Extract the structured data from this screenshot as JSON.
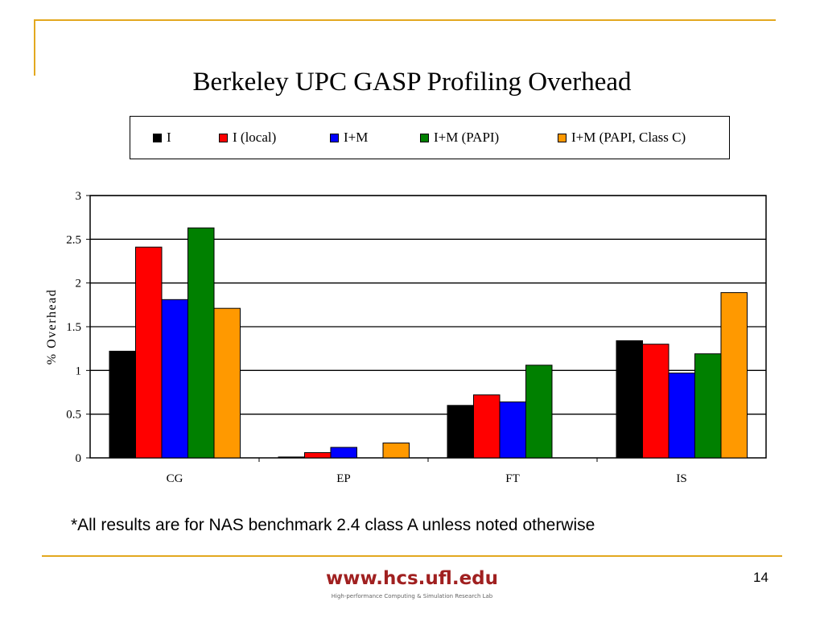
{
  "slide": {
    "note": "*All results are for NAS benchmark 2.4 class A unless noted otherwise",
    "footer_url": "www.hcs.ufl.edu",
    "footer_lab": "High-performance Computing & Simulation Research Lab",
    "page_number": "14",
    "accent_color": "#e3a81f"
  },
  "chart_data": {
    "type": "bar",
    "title": "Berkeley UPC GASP Profiling Overhead",
    "xlabel": "",
    "ylabel": "% Overhead",
    "ylim": [
      0,
      3
    ],
    "yticks": [
      "0",
      "0.5",
      "1",
      "1.5",
      "2",
      "2.5",
      "3"
    ],
    "categories": [
      "CG",
      "EP",
      "FT",
      "IS"
    ],
    "grid": true,
    "legend_position": "top",
    "series": [
      {
        "name": "I",
        "color": "#000000",
        "values": [
          1.22,
          0.01,
          0.6,
          1.34
        ]
      },
      {
        "name": "I (local)",
        "color": "#ff0000",
        "values": [
          2.41,
          0.06,
          0.72,
          1.3
        ]
      },
      {
        "name": "I+M",
        "color": "#0000ff",
        "values": [
          1.81,
          0.12,
          0.64,
          0.97
        ]
      },
      {
        "name": "I+M (PAPI)",
        "color": "#008000",
        "values": [
          2.63,
          0,
          1.06,
          1.19
        ]
      },
      {
        "name": "I+M (PAPI, Class C)",
        "color": "#ff9900",
        "values": [
          1.71,
          0.17,
          0,
          1.89
        ]
      }
    ]
  }
}
